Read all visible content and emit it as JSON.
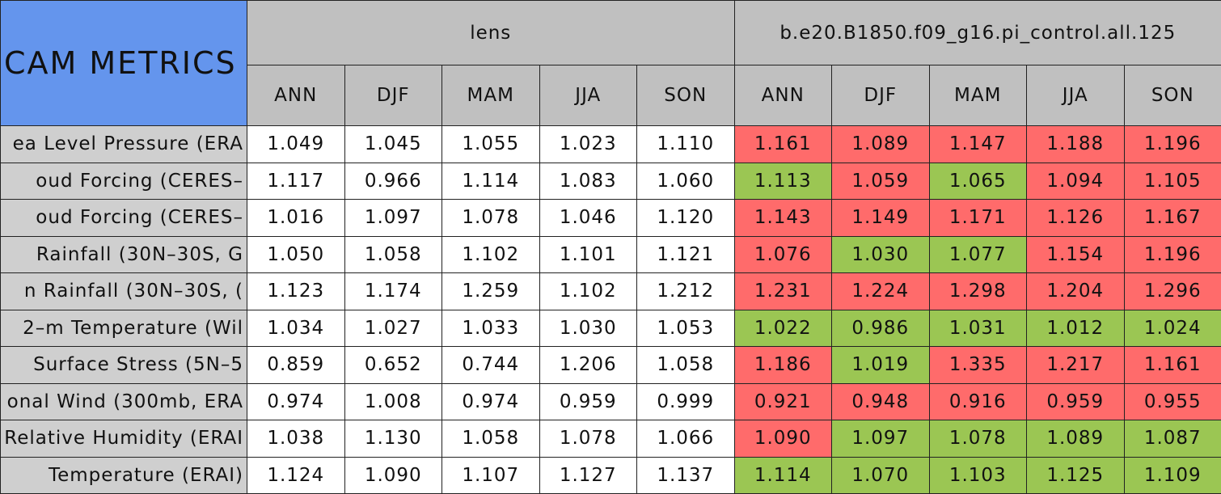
{
  "header": {
    "title": "CAM METRICS",
    "groups": [
      {
        "name": "lens",
        "columns": [
          "ANN",
          "DJF",
          "MAM",
          "JJA",
          "SON"
        ]
      },
      {
        "name": "b.e20.B1850.f09_g16.pi_control.all.125",
        "columns": [
          "ANN",
          "DJF",
          "MAM",
          "JJA",
          "SON"
        ]
      }
    ]
  },
  "table": {
    "rows": [
      {
        "label": "ea Level Pressure (ERA",
        "values": [
          "1.049",
          "1.045",
          "1.055",
          "1.023",
          "1.110",
          "1.161",
          "1.089",
          "1.147",
          "1.188",
          "1.196"
        ],
        "fills": [
          "#ffffff",
          "#ffffff",
          "#ffffff",
          "#ffffff",
          "#ffffff",
          "#ff6b6b",
          "#ff6b6b",
          "#ff6b6b",
          "#ff6b6b",
          "#ff6b6b"
        ]
      },
      {
        "label": "oud Forcing (CERES–",
        "values": [
          "1.117",
          "0.966",
          "1.114",
          "1.083",
          "1.060",
          "1.113",
          "1.059",
          "1.065",
          "1.094",
          "1.105"
        ],
        "fills": [
          "#ffffff",
          "#ffffff",
          "#ffffff",
          "#ffffff",
          "#ffffff",
          "#9bc653",
          "#ff6b6b",
          "#9bc653",
          "#ff6b6b",
          "#ff6b6b"
        ]
      },
      {
        "label": "oud Forcing (CERES–",
        "values": [
          "1.016",
          "1.097",
          "1.078",
          "1.046",
          "1.120",
          "1.143",
          "1.149",
          "1.171",
          "1.126",
          "1.167"
        ],
        "fills": [
          "#ffffff",
          "#ffffff",
          "#ffffff",
          "#ffffff",
          "#ffffff",
          "#ff6b6b",
          "#ff6b6b",
          "#ff6b6b",
          "#ff6b6b",
          "#ff6b6b"
        ]
      },
      {
        "label": "Rainfall (30N–30S, G",
        "values": [
          "1.050",
          "1.058",
          "1.102",
          "1.101",
          "1.121",
          "1.076",
          "1.030",
          "1.077",
          "1.154",
          "1.196"
        ],
        "fills": [
          "#ffffff",
          "#ffffff",
          "#ffffff",
          "#ffffff",
          "#ffffff",
          "#ff6b6b",
          "#9bc653",
          "#9bc653",
          "#ff6b6b",
          "#ff6b6b"
        ]
      },
      {
        "label": "n Rainfall (30N–30S, (",
        "values": [
          "1.123",
          "1.174",
          "1.259",
          "1.102",
          "1.212",
          "1.231",
          "1.224",
          "1.298",
          "1.204",
          "1.296"
        ],
        "fills": [
          "#ffffff",
          "#ffffff",
          "#ffffff",
          "#ffffff",
          "#ffffff",
          "#ff6b6b",
          "#ff6b6b",
          "#ff6b6b",
          "#ff6b6b",
          "#ff6b6b"
        ]
      },
      {
        "label": "2–m Temperature (Wil",
        "values": [
          "1.034",
          "1.027",
          "1.033",
          "1.030",
          "1.053",
          "1.022",
          "0.986",
          "1.031",
          "1.012",
          "1.024"
        ],
        "fills": [
          "#ffffff",
          "#ffffff",
          "#ffffff",
          "#ffffff",
          "#ffffff",
          "#9bc653",
          "#9bc653",
          "#9bc653",
          "#9bc653",
          "#9bc653"
        ]
      },
      {
        "label": "Surface Stress (5N–5",
        "values": [
          "0.859",
          "0.652",
          "0.744",
          "1.206",
          "1.058",
          "1.186",
          "1.019",
          "1.335",
          "1.217",
          "1.161"
        ],
        "fills": [
          "#ffffff",
          "#ffffff",
          "#ffffff",
          "#ffffff",
          "#ffffff",
          "#ff6b6b",
          "#9bc653",
          "#ff6b6b",
          "#ff6b6b",
          "#ff6b6b"
        ]
      },
      {
        "label": "onal Wind (300mb, ERA",
        "values": [
          "0.974",
          "1.008",
          "0.974",
          "0.959",
          "0.999",
          "0.921",
          "0.948",
          "0.916",
          "0.959",
          "0.955"
        ],
        "fills": [
          "#ffffff",
          "#ffffff",
          "#ffffff",
          "#ffffff",
          "#ffffff",
          "#ff6b6b",
          "#ff6b6b",
          "#ff6b6b",
          "#ff6b6b",
          "#ff6b6b"
        ]
      },
      {
        "label": "Relative Humidity (ERAI",
        "values": [
          "1.038",
          "1.130",
          "1.058",
          "1.078",
          "1.066",
          "1.090",
          "1.097",
          "1.078",
          "1.089",
          "1.087"
        ],
        "fills": [
          "#ffffff",
          "#ffffff",
          "#ffffff",
          "#ffffff",
          "#ffffff",
          "#ff6b6b",
          "#9bc653",
          "#9bc653",
          "#9bc653",
          "#9bc653"
        ]
      },
      {
        "label": "Temperature (ERAI)",
        "values": [
          "1.124",
          "1.090",
          "1.107",
          "1.127",
          "1.137",
          "1.114",
          "1.070",
          "1.103",
          "1.125",
          "1.109"
        ],
        "fills": [
          "#ffffff",
          "#ffffff",
          "#ffffff",
          "#ffffff",
          "#ffffff",
          "#9bc653",
          "#9bc653",
          "#9bc653",
          "#9bc653",
          "#9bc653"
        ]
      }
    ]
  }
}
